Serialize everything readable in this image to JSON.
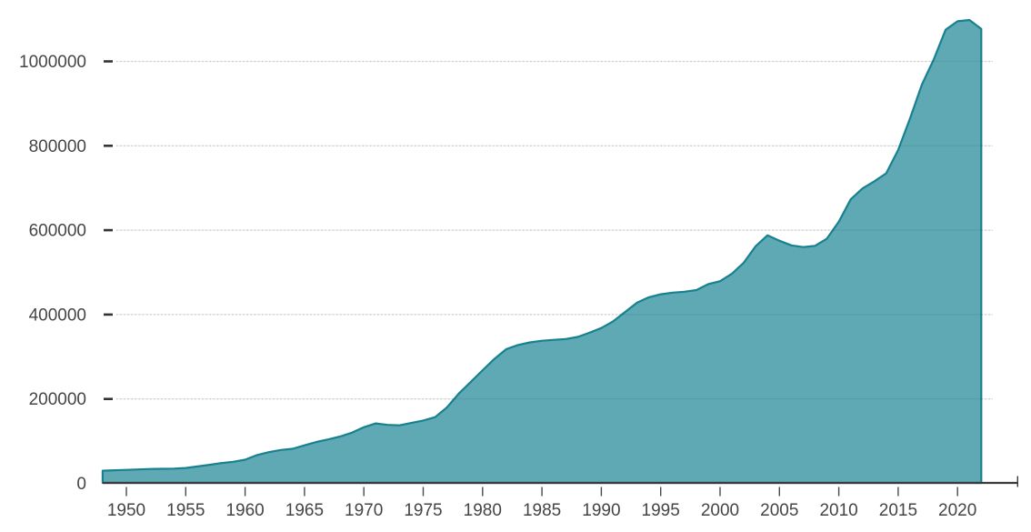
{
  "chart_data": {
    "type": "area",
    "title": "",
    "xlabel": "",
    "ylabel": "",
    "legend": "none",
    "grid": "horizontal-dotted",
    "xlim": [
      1948,
      2022
    ],
    "ylim": [
      0,
      1100000
    ],
    "x_ticks": [
      1950,
      1955,
      1960,
      1965,
      1970,
      1975,
      1980,
      1985,
      1990,
      1995,
      2000,
      2005,
      2010,
      2015,
      2020
    ],
    "y_ticks": [
      0,
      200000,
      400000,
      600000,
      800000,
      1000000
    ],
    "y_tick_labels": [
      "0",
      "200000",
      "400000",
      "600000",
      "800000",
      "1000000"
    ],
    "x": [
      1948,
      1949,
      1950,
      1951,
      1952,
      1953,
      1954,
      1955,
      1956,
      1957,
      1958,
      1959,
      1960,
      1961,
      1962,
      1963,
      1964,
      1965,
      1966,
      1967,
      1968,
      1969,
      1970,
      1971,
      1972,
      1973,
      1974,
      1975,
      1976,
      1977,
      1978,
      1979,
      1980,
      1981,
      1982,
      1983,
      1984,
      1985,
      1986,
      1987,
      1988,
      1989,
      1990,
      1991,
      1992,
      1993,
      1994,
      1995,
      1996,
      1997,
      1998,
      1999,
      2000,
      2001,
      2002,
      2003,
      2004,
      2005,
      2006,
      2007,
      2008,
      2009,
      2010,
      2011,
      2012,
      2013,
      2014,
      2015,
      2016,
      2017,
      2018,
      2019,
      2020,
      2021,
      2022
    ],
    "values": [
      30000,
      31000,
      32000,
      33000,
      34000,
      34500,
      35000,
      36500,
      40000,
      44000,
      48000,
      51000,
      56000,
      67000,
      74000,
      79000,
      82000,
      90000,
      98000,
      104000,
      111000,
      120000,
      133000,
      142000,
      138500,
      137500,
      143000,
      149000,
      157000,
      180000,
      213000,
      240000,
      268000,
      295000,
      318000,
      328000,
      334000,
      338000,
      340000,
      342000,
      347000,
      357000,
      368000,
      384000,
      406000,
      428000,
      441000,
      448000,
      452000,
      454000,
      458000,
      472000,
      479000,
      497000,
      523000,
      562000,
      588000,
      575000,
      564000,
      560000,
      563000,
      580000,
      620000,
      673000,
      699000,
      716000,
      735000,
      790000,
      865000,
      945000,
      1005000,
      1075000,
      1095000,
      1098000,
      1077000
    ],
    "colors": {
      "fill": "#5fa9b4",
      "stroke": "#18818f",
      "axis": "#3a3a3a",
      "tick": "#4a4a4a",
      "tick_label": "#454545",
      "gridline": "#d6d6d6"
    }
  }
}
